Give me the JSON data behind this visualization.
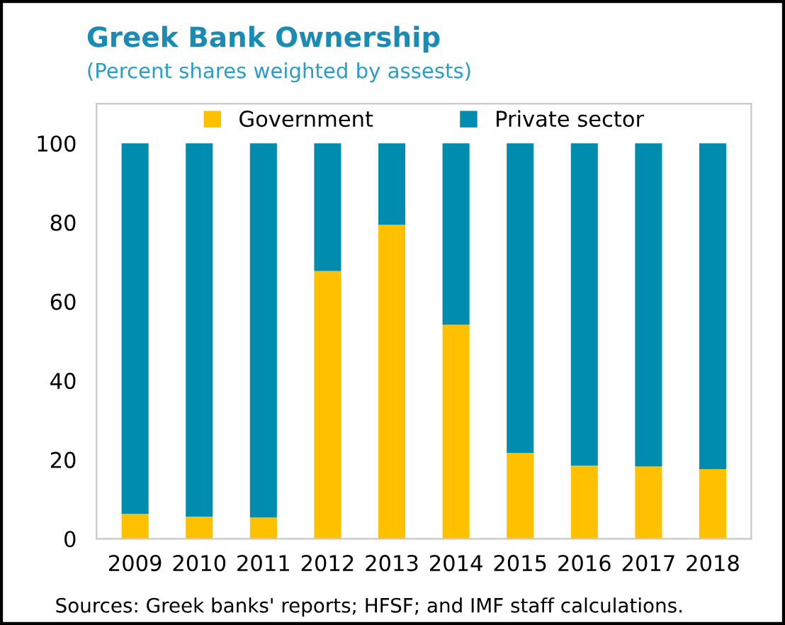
{
  "chart_data": {
    "type": "bar",
    "title": "Greek Bank Ownership",
    "subtitle": "(Percent shares weighted by assests)",
    "categories": [
      "2009",
      "2010",
      "2011",
      "2012",
      "2013",
      "2014",
      "2015",
      "2016",
      "2017",
      "2018"
    ],
    "series": [
      {
        "name": "Government",
        "color": "#ffc000",
        "values": [
          6.3,
          5.6,
          5.4,
          67.7,
          79.4,
          54.1,
          21.7,
          18.5,
          18.3,
          17.6
        ]
      },
      {
        "name": "Private sector",
        "color": "#008caf",
        "values": [
          93.7,
          94.4,
          94.6,
          32.3,
          20.6,
          45.9,
          78.3,
          81.5,
          81.7,
          82.4
        ]
      }
    ],
    "stacked": true,
    "ylim": [
      0,
      110
    ],
    "yticks": [
      0,
      20,
      40,
      60,
      80,
      100
    ],
    "grid": false,
    "legend": "top",
    "annotations": [
      "Sources: Greek banks' reports; HFSF; and IMF staff calculations."
    ]
  }
}
